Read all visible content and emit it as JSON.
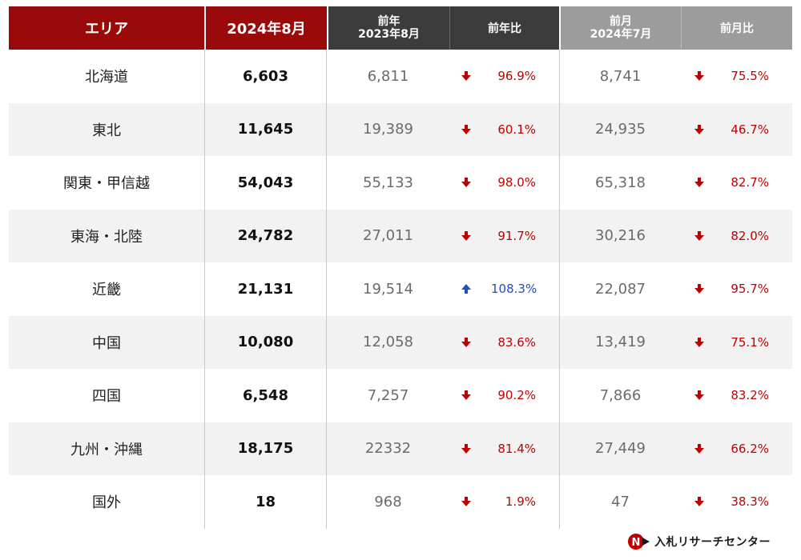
{
  "header": {
    "area": "エリア",
    "current": "2024年8月",
    "prev_year_title": "前年",
    "prev_year_sub": "2023年8月",
    "yoy": "前年比",
    "prev_month_title": "前月",
    "prev_month_sub": "2024年7月",
    "mom": "前月比"
  },
  "rows": [
    {
      "area": "北海道",
      "current": "6,603",
      "prev_year": "6,811",
      "yoy": "96.9%",
      "yoy_dir": "down",
      "prev_month": "8,741",
      "mom": "75.5%",
      "mom_dir": "down"
    },
    {
      "area": "東北",
      "current": "11,645",
      "prev_year": "19,389",
      "yoy": "60.1%",
      "yoy_dir": "down",
      "prev_month": "24,935",
      "mom": "46.7%",
      "mom_dir": "down"
    },
    {
      "area": "関東・甲信越",
      "current": "54,043",
      "prev_year": "55,133",
      "yoy": "98.0%",
      "yoy_dir": "down",
      "prev_month": "65,318",
      "mom": "82.7%",
      "mom_dir": "down"
    },
    {
      "area": "東海・北陸",
      "current": "24,782",
      "prev_year": "27,011",
      "yoy": "91.7%",
      "yoy_dir": "down",
      "prev_month": "30,216",
      "mom": "82.0%",
      "mom_dir": "down"
    },
    {
      "area": "近畿",
      "current": "21,131",
      "prev_year": "19,514",
      "yoy": "108.3%",
      "yoy_dir": "up",
      "prev_month": "22,087",
      "mom": "95.7%",
      "mom_dir": "down"
    },
    {
      "area": "中国",
      "current": "10,080",
      "prev_year": "12,058",
      "yoy": "83.6%",
      "yoy_dir": "down",
      "prev_month": "13,419",
      "mom": "75.1%",
      "mom_dir": "down"
    },
    {
      "area": "四国",
      "current": "6,548",
      "prev_year": "7,257",
      "yoy": "90.2%",
      "yoy_dir": "down",
      "prev_month": "7,866",
      "mom": "83.2%",
      "mom_dir": "down"
    },
    {
      "area": "九州・沖縄",
      "current": "18,175",
      "prev_year": "22332",
      "yoy": "81.4%",
      "yoy_dir": "down",
      "prev_month": "27,449",
      "mom": "66.2%",
      "mom_dir": "down"
    },
    {
      "area": "国外",
      "current": "18",
      "prev_year": "968",
      "yoy": "1.9%",
      "yoy_dir": "down",
      "prev_month": "47",
      "mom": "38.3%",
      "mom_dir": "down"
    }
  ],
  "colors": {
    "header_red": "#9b0a0a",
    "header_dark": "#3c3c3c",
    "header_gray": "#9c9c9c",
    "down": "#c00000",
    "up": "#1f4fc4"
  },
  "logo": {
    "icon": "nyusatsu-logo-icon",
    "text": "入札リサーチセンター"
  }
}
